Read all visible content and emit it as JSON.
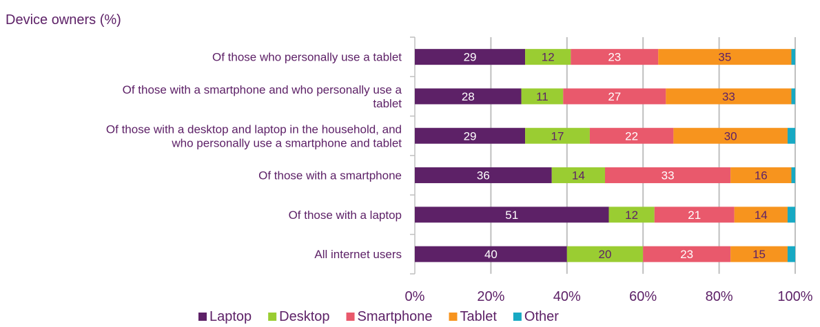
{
  "chart_data": {
    "type": "bar",
    "orientation": "horizontal",
    "stacked": true,
    "title": "Device owners (%)",
    "categories": [
      [
        "Of those who personally use a tablet"
      ],
      [
        "Of those with a smartphone and who personally use a",
        "tablet"
      ],
      [
        "Of those with a desktop and laptop in the household, and",
        "who personally use a smartphone and tablet"
      ],
      [
        "Of those with a smartphone"
      ],
      [
        "Of those with a laptop"
      ],
      [
        "All internet users"
      ]
    ],
    "series": [
      {
        "name": "Laptop",
        "color": "#5d2167",
        "label_color": "#ffffff",
        "values": [
          29,
          28,
          29,
          36,
          51,
          40
        ]
      },
      {
        "name": "Desktop",
        "color": "#9acd32",
        "label_color": "#5d2167",
        "values": [
          12,
          11,
          17,
          14,
          12,
          20
        ]
      },
      {
        "name": "Smartphone",
        "color": "#e9596c",
        "label_color": "#ffffff",
        "values": [
          23,
          27,
          22,
          33,
          21,
          23
        ]
      },
      {
        "name": "Tablet",
        "color": "#f7941e",
        "label_color": "#5d2167",
        "values": [
          35,
          33,
          30,
          16,
          14,
          15
        ]
      },
      {
        "name": "Other",
        "color": "#17a9c3",
        "label_color": "#5d2167",
        "values": [
          1,
          1,
          2,
          1,
          2,
          2
        ]
      }
    ],
    "show_segment_labels": [
      true,
      true,
      true,
      true,
      false
    ],
    "xlim": [
      0,
      100
    ],
    "xticks": [
      "0%",
      "20%",
      "40%",
      "60%",
      "80%",
      "100%"
    ],
    "grid": "vertical",
    "legend": "bottom"
  }
}
